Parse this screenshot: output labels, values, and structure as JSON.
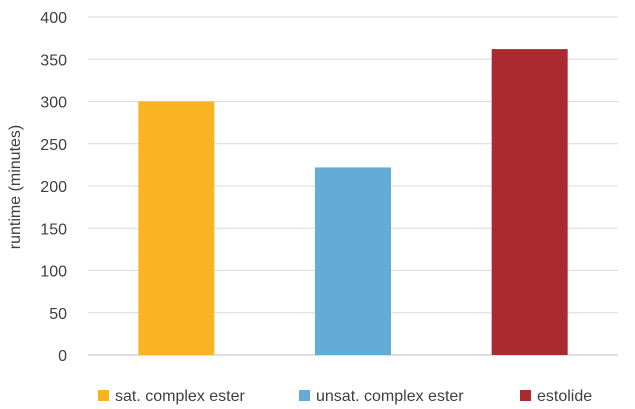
{
  "chart_data": {
    "type": "bar",
    "categories": [
      "sat. complex ester",
      "unsat. complex ester",
      "estolide"
    ],
    "values": [
      300,
      222,
      362
    ],
    "colors": [
      "#fbb421",
      "#63acd8",
      "#a92a2f"
    ],
    "title": "",
    "xlabel": "",
    "ylabel": "runtime (minutes)",
    "ylim": [
      0,
      400
    ],
    "yticks": [
      0,
      50,
      100,
      150,
      200,
      250,
      300,
      350,
      400
    ],
    "grid": true,
    "legend_position": "bottom"
  }
}
